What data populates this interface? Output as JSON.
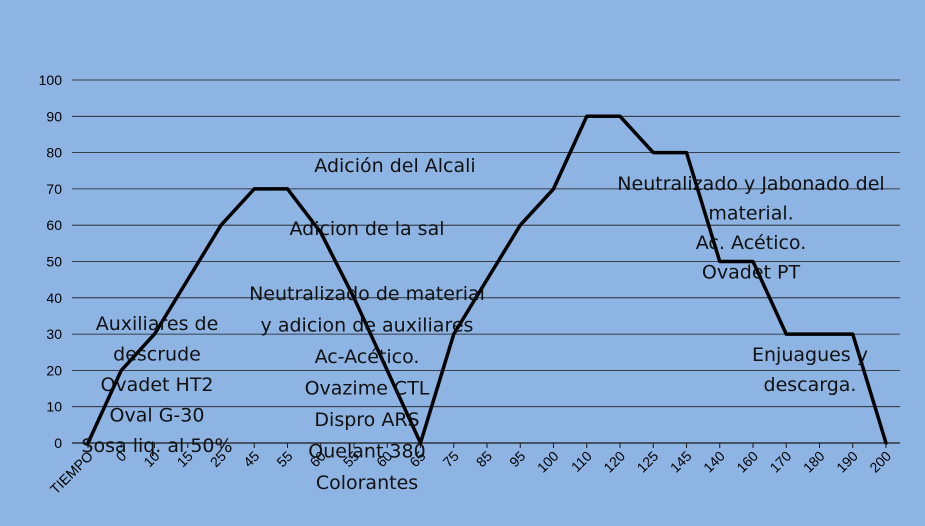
{
  "chart_data": {
    "type": "line",
    "title": "",
    "xlabel": "",
    "ylabel": "",
    "ylim": [
      0,
      100
    ],
    "yticks": [
      0,
      10,
      20,
      30,
      40,
      50,
      60,
      70,
      80,
      90,
      100
    ],
    "grid": true,
    "x_categories": [
      "TIEMPO",
      "0",
      "10",
      "15",
      "25",
      "45",
      "55",
      "60",
      "55",
      "60",
      "65",
      "75",
      "85",
      "95",
      "100",
      "110",
      "120",
      "125",
      "145",
      "140",
      "160",
      "170",
      "180",
      "190",
      "200"
    ],
    "line_color": "#000000",
    "series": [
      {
        "values": [
          0,
          20,
          30,
          45,
          60,
          70,
          70,
          58,
          40,
          20,
          0,
          30,
          45,
          60,
          70,
          90,
          90,
          80,
          80,
          50,
          50,
          30,
          30,
          30,
          0
        ]
      }
    ],
    "annotations": [
      {
        "lines": [
          "Adición del Alcali"
        ]
      },
      {
        "lines": [
          "Adicion de la sal"
        ]
      },
      {
        "lines": [
          "Neutralizado de material",
          "y adicion de auxiliares",
          "Ac-Acético.",
          "Ovazime CTL",
          "Dispro ARS",
          "Quelant 380",
          "Colorantes"
        ]
      },
      {
        "lines": [
          "Auxiliares de",
          "descrude",
          "Ovadet HT2",
          "Oval G-30",
          "Sosa liq. al 50%"
        ]
      },
      {
        "lines": [
          "Neutralizado y Jabonado del",
          "material.",
          "Ac. Acético.",
          "Ovadet PT"
        ]
      },
      {
        "lines": [
          "Enjuagues y",
          "descarga."
        ]
      }
    ]
  }
}
